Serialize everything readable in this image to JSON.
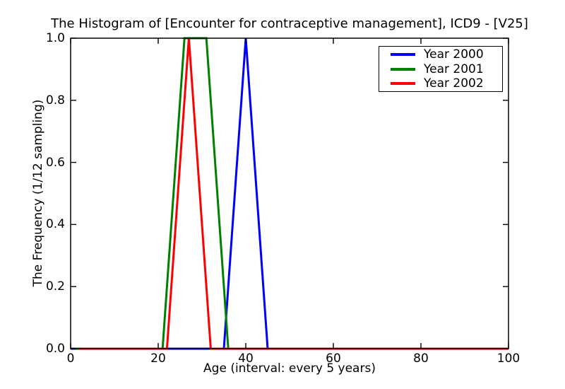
{
  "chart_data": {
    "type": "line",
    "title": "The Histogram of [Encounter for contraceptive management], ICD9 - [V25]",
    "xlabel": "Age (interval: every 5 years)",
    "ylabel": "The Frequency (1/12 sampling)",
    "xlim": [
      0,
      100
    ],
    "ylim": [
      0.0,
      1.0
    ],
    "xtick_values": [
      0,
      20,
      40,
      60,
      80,
      100
    ],
    "xtick_labels": [
      "0",
      "20",
      "40",
      "60",
      "80",
      "100"
    ],
    "ytick_values": [
      0.0,
      0.2,
      0.4,
      0.6,
      0.8,
      1.0
    ],
    "ytick_labels": [
      "0.0",
      "0.2",
      "0.4",
      "0.6",
      "0.8",
      "1.0"
    ],
    "grid": false,
    "legend_position": "upper right",
    "series": [
      {
        "name": "Year 2000",
        "color": "#0000ff",
        "points": [
          [
            0,
            0
          ],
          [
            35,
            0
          ],
          [
            40,
            1.0
          ],
          [
            45,
            0
          ],
          [
            100,
            0
          ]
        ]
      },
      {
        "name": "Year 2001",
        "color": "#008000",
        "points": [
          [
            1,
            0
          ],
          [
            21,
            0
          ],
          [
            26,
            1.0
          ],
          [
            31,
            1.0
          ],
          [
            36,
            0
          ],
          [
            100,
            0
          ]
        ]
      },
      {
        "name": "Year 2002",
        "color": "#ff0000",
        "points": [
          [
            2,
            0
          ],
          [
            22,
            0
          ],
          [
            27,
            1.0
          ],
          [
            32,
            0
          ],
          [
            100,
            0
          ]
        ]
      }
    ]
  }
}
